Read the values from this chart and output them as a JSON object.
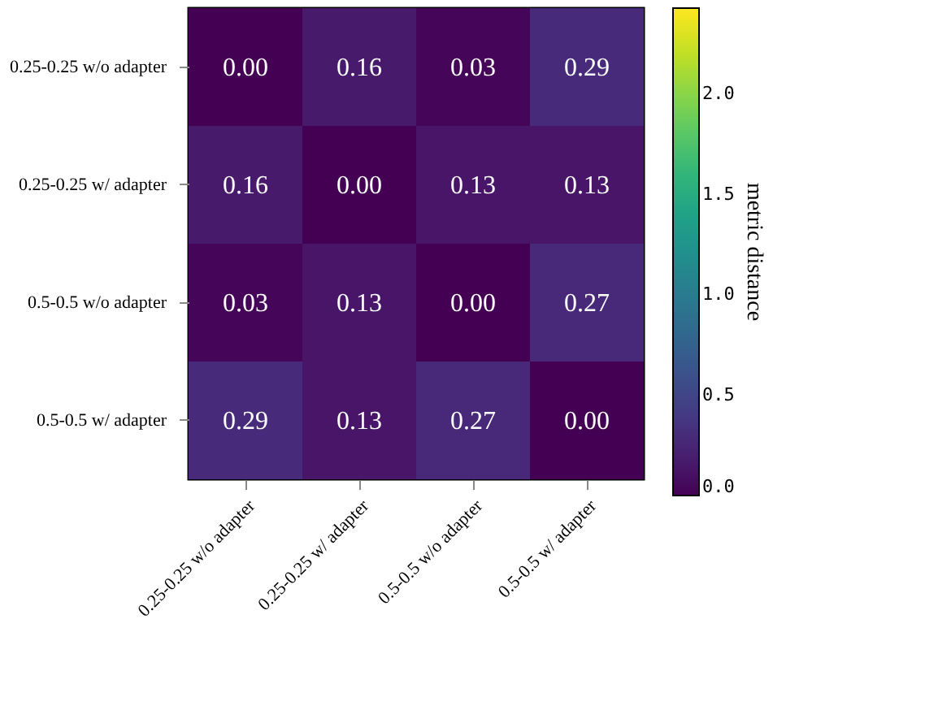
{
  "chart_data": {
    "type": "heatmap",
    "categories": [
      "0.25-0.25 w/o adapter",
      "0.25-0.25 w/ adapter",
      "0.5-0.5 w/o adapter",
      "0.5-0.5 w/ adapter"
    ],
    "y_categories": [
      "0.25-0.25 w/o adapter",
      "0.25-0.25 w/ adapter",
      "0.5-0.5 w/o adapter",
      "0.5-0.5 w/ adapter"
    ],
    "cells": [
      [
        0.0,
        0.16,
        0.03,
        0.29
      ],
      [
        0.16,
        0.0,
        0.13,
        0.13
      ],
      [
        0.03,
        0.13,
        0.0,
        0.27
      ],
      [
        0.29,
        0.13,
        0.27,
        0.0
      ]
    ],
    "cell_labels": [
      [
        "0.00",
        "0.16",
        "0.03",
        "0.29"
      ],
      [
        "0.16",
        "0.00",
        "0.13",
        "0.13"
      ],
      [
        "0.03",
        "0.13",
        "0.00",
        "0.27"
      ],
      [
        "0.29",
        "0.13",
        "0.27",
        "0.00"
      ]
    ],
    "clim": [
      0,
      2.43
    ],
    "cticks": [
      {
        "value": 0,
        "label": "0.0"
      },
      0.5,
      {
        "value": 1,
        "label": "1.0"
      },
      1.5,
      {
        "value": 2,
        "label": "2.0"
      }
    ],
    "clabel": "metric distance"
  }
}
